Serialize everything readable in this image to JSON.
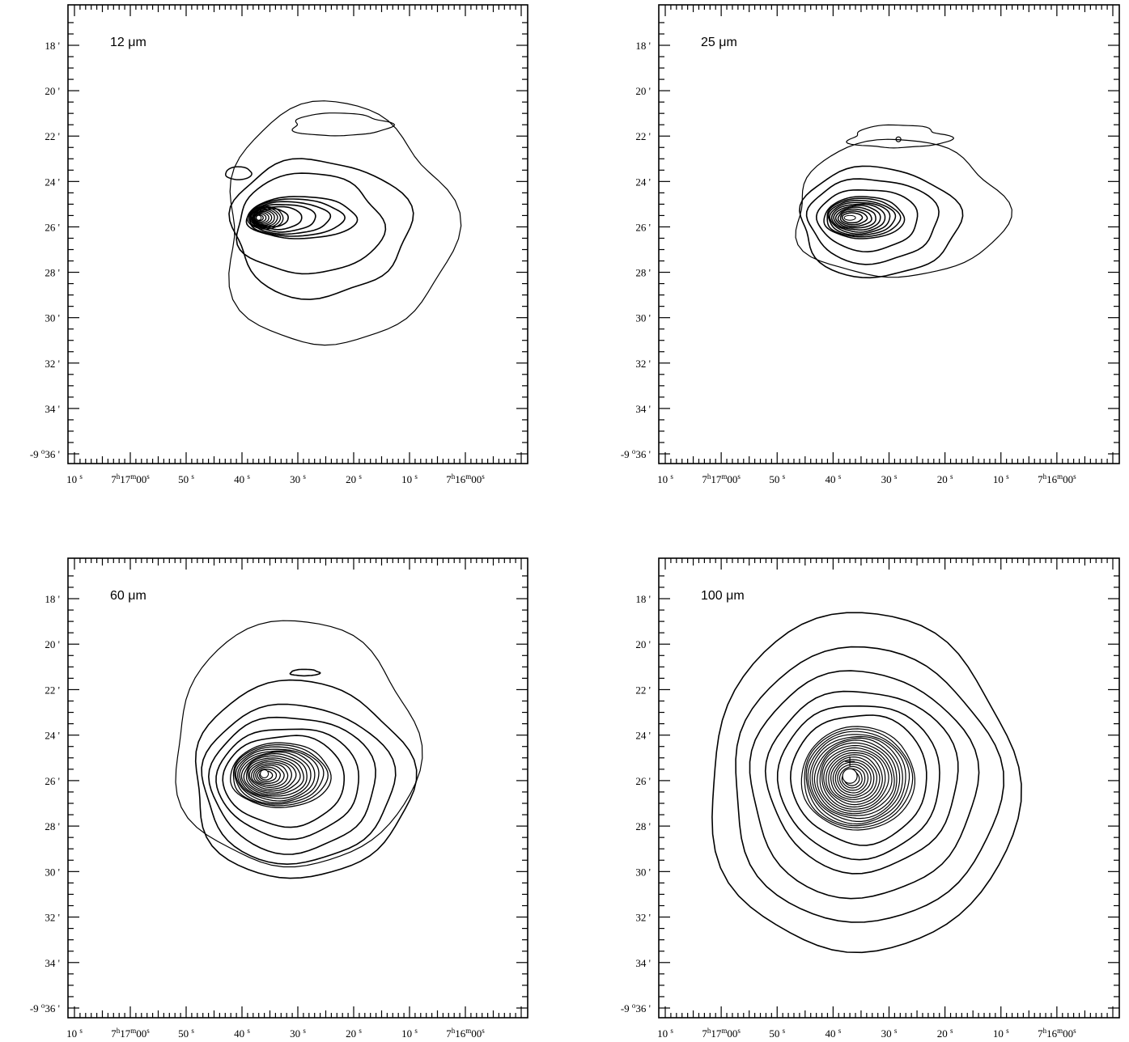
{
  "chart_data": [
    {
      "type": "contour",
      "title": "12 μm",
      "xlabels": [
        "10",
        "7",
        "17",
        "00",
        "50",
        "40",
        "30",
        "20",
        "10",
        "7",
        "16",
        "00"
      ],
      "x_tick_labels": [
        {
          "main": "10",
          "sup": "s"
        },
        {
          "h": "7",
          "m": "17",
          "s": "00"
        },
        {
          "main": "50",
          "sup": "s"
        },
        {
          "main": "40",
          "sup": "s"
        },
        {
          "main": "30",
          "sup": "s"
        },
        {
          "main": "20",
          "sup": "s"
        },
        {
          "main": "10",
          "sup": "s"
        },
        {
          "h": "7",
          "m": "16",
          "s": "00"
        }
      ],
      "y_tick_labels": [
        "18'",
        "20'",
        "22'",
        "24'",
        "26'",
        "28'",
        "30'",
        "32'",
        "34'"
      ],
      "y_origin_label": {
        "pre": "-9",
        "sup": "o",
        "post": "36'"
      },
      "peak": {
        "ra_s": 37,
        "dec_min": 25.6
      },
      "contours": [
        {
          "dec_min": [
            21.5,
            20.0,
            21.2,
            24.5,
            28.5,
            30.5,
            29.5
          ],
          "ra_s_west": 10,
          "ra_s_east": 44
        },
        {
          "ra_s_east": 43,
          "ra_s_west": 18,
          "dec_top": 23.7,
          "dec_bot": 28.5
        },
        {
          "ra_s_east": 42,
          "ra_s_west": 22,
          "dec_top": 24.7,
          "dec_bot": 27.4
        },
        {
          "ra_s_east": 41,
          "ra_s_west": 23,
          "dec_top": 25.0,
          "dec_bot": 26.8
        },
        {
          "ra_s_east": 40.5,
          "ra_s_west": 23.5,
          "dec_top": 25.1,
          "dec_bot": 26.5
        }
      ]
    },
    {
      "type": "contour",
      "title": "25 μm",
      "x_tick_labels": [
        {
          "main": "10",
          "sup": "s"
        },
        {
          "h": "7",
          "m": "17",
          "s": "00"
        },
        {
          "main": "50",
          "sup": "s"
        },
        {
          "main": "40",
          "sup": "s"
        },
        {
          "main": "30",
          "sup": "s"
        },
        {
          "main": "20",
          "sup": "s"
        },
        {
          "main": "10",
          "sup": "s"
        },
        {
          "h": "7",
          "m": "16",
          "s": "00"
        }
      ],
      "y_tick_labels": [
        "18'",
        "20'",
        "22'",
        "24'",
        "26'",
        "28'",
        "30'",
        "32'",
        "34'"
      ],
      "y_origin_label": {
        "pre": "-9",
        "sup": "o",
        "post": "36'"
      },
      "peak": {
        "ra_s": 37,
        "dec_min": 25.6
      }
    },
    {
      "type": "contour",
      "title": "60 μm",
      "x_tick_labels": [
        {
          "main": "10",
          "sup": "s"
        },
        {
          "h": "7",
          "m": "17",
          "s": "00"
        },
        {
          "main": "50",
          "sup": "s"
        },
        {
          "main": "40",
          "sup": "s"
        },
        {
          "main": "30",
          "sup": "s"
        },
        {
          "main": "20",
          "sup": "s"
        },
        {
          "main": "10",
          "sup": "s"
        },
        {
          "h": "7",
          "m": "16",
          "s": "00"
        }
      ],
      "y_tick_labels": [
        "18'",
        "20'",
        "22'",
        "24'",
        "26'",
        "28'",
        "30'",
        "32'",
        "34'"
      ],
      "y_origin_label": {
        "pre": "-9",
        "sup": "o",
        "post": "36'"
      },
      "peak": {
        "ra_s": 36,
        "dec_min": 25.7
      }
    },
    {
      "type": "contour",
      "title": "100 μm",
      "x_tick_labels": [
        {
          "main": "10",
          "sup": "s"
        },
        {
          "h": "7",
          "m": "17",
          "s": "00"
        },
        {
          "main": "50",
          "sup": "s"
        },
        {
          "main": "40",
          "sup": "s"
        },
        {
          "main": "30",
          "sup": "s"
        },
        {
          "main": "20",
          "sup": "s"
        },
        {
          "main": "10",
          "sup": "s"
        },
        {
          "h": "7",
          "m": "16",
          "s": "00"
        }
      ],
      "y_tick_labels": [
        "18'",
        "20'",
        "22'",
        "24'",
        "26'",
        "28'",
        "30'",
        "32'",
        "34'"
      ],
      "y_origin_label": {
        "pre": "-9",
        "sup": "o",
        "post": "36'"
      },
      "peak": {
        "ra_s": 37,
        "dec_min": 25.8
      }
    }
  ]
}
